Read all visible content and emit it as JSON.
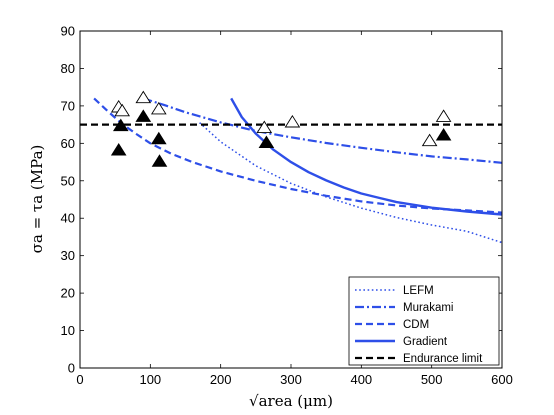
{
  "chart_data": {
    "type": "line",
    "title": "",
    "xlabel": "√area (μm)",
    "ylabel": "σa = τa (MPa)",
    "xlim": [
      0,
      600
    ],
    "ylim": [
      0,
      90
    ],
    "x_ticks": [
      "0",
      "100",
      "200",
      "300",
      "400",
      "500",
      "600"
    ],
    "y_ticks": [
      "0",
      "10",
      "20",
      "30",
      "40",
      "50",
      "60",
      "70",
      "80",
      "90"
    ],
    "grid": false,
    "legend_position": "bottom-right",
    "series": [
      {
        "name": "LEFM",
        "style": "dotted",
        "color": "#2e4fe8",
        "x": [
          170,
          200,
          250,
          300,
          350,
          400,
          450,
          500,
          550,
          600
        ],
        "y": [
          65.5,
          60.4,
          54.0,
          49.3,
          45.7,
          42.7,
          40.2,
          38.2,
          36.5,
          33.5
        ]
      },
      {
        "name": "Murakami",
        "style": "dash-dot",
        "color": "#2e4fe8",
        "x": [
          90,
          120,
          150,
          200,
          250,
          300,
          350,
          400,
          450,
          500,
          550,
          600
        ],
        "y": [
          72,
          70.2,
          68.3,
          65.6,
          63.3,
          61.6,
          60.1,
          58.8,
          57.6,
          56.5,
          55.7,
          54.8
        ]
      },
      {
        "name": "CDM",
        "style": "dashed",
        "color": "#2e4fe8",
        "x": [
          20,
          40,
          60,
          80,
          100,
          130,
          160,
          200,
          250,
          300,
          350,
          400,
          450,
          500,
          550,
          600
        ],
        "y": [
          72,
          68.5,
          65.2,
          62.5,
          60,
          57.2,
          55,
          52.5,
          50,
          47.8,
          46,
          44.5,
          43.4,
          42.6,
          42.1,
          41.5
        ]
      },
      {
        "name": "Gradient",
        "style": "solid",
        "color": "#2e4fe8",
        "x": [
          215,
          230,
          250,
          275,
          300,
          325,
          350,
          375,
          400,
          450,
          500,
          550,
          600
        ],
        "y": [
          72,
          67,
          62.6,
          58.3,
          55,
          52.3,
          50.1,
          48.2,
          46.6,
          44.3,
          42.8,
          41.8,
          41
        ]
      },
      {
        "name": "Endurance limit",
        "style": "dashed",
        "color": "#000000",
        "x": [
          0,
          600
        ],
        "y": [
          65,
          65
        ]
      }
    ],
    "markers": [
      {
        "name": "",
        "shape": "open-triangle",
        "x": [
          55,
          60,
          90,
          112,
          262,
          302,
          497,
          517
        ],
        "y": [
          69.5,
          68.5,
          72,
          69,
          64,
          65.5,
          60.5,
          67
        ]
      },
      {
        "name": "",
        "shape": "filled-triangle",
        "x": [
          55,
          58,
          90,
          112,
          113,
          265,
          517
        ],
        "y": [
          58,
          64.5,
          67,
          61,
          55,
          60,
          62
        ]
      }
    ]
  }
}
